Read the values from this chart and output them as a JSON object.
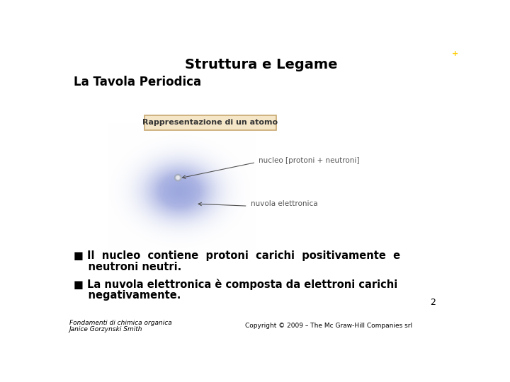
{
  "title": "Struttura e Legame",
  "subtitle": "La Tavola Periodica",
  "box_label": "Rappresentazione di un atomo",
  "label_nucleo": "nucleo [protoni + neutroni]",
  "label_nuvola": "nuvola elettronica",
  "bullet1_line1": "■ Il  nucleo  contiene  protoni  carichi  positivamente  e",
  "bullet1_line2": "    neutroni neutri.",
  "bullet2_line1": "■ La nuvola elettronica è composta da elettroni carichi",
  "bullet2_line2": "    negativamente.",
  "footer_left1": "Fondamenti di chimica organica",
  "footer_left2": "Janice Gorzynski Smith",
  "footer_right": "Copyright © 2009 – The Mc Graw-Hill Companies srl",
  "page_number": "2",
  "bg_color": "#ffffff",
  "title_color": "#000000",
  "subtitle_color": "#000000",
  "text_color": "#000000",
  "footer_color": "#000000",
  "box_bg": "#f5e6c8",
  "box_border": "#c8a870",
  "arrow_color": "#555555",
  "label_color": "#555555"
}
